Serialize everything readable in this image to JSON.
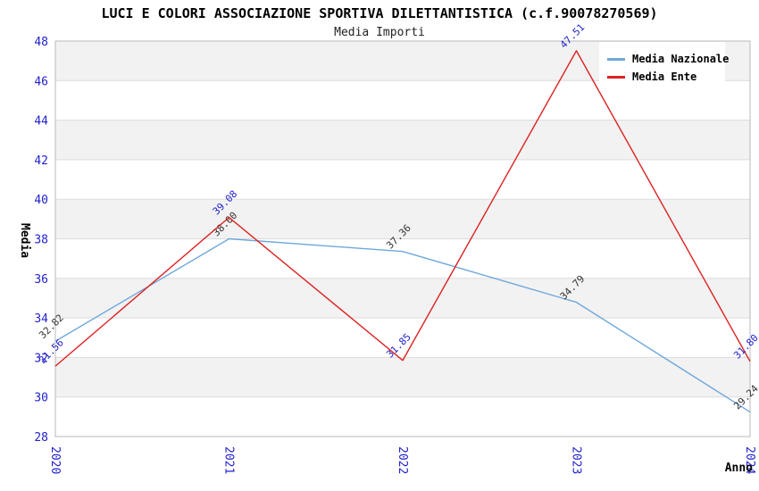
{
  "header": {
    "title": "LUCI E COLORI ASSOCIAZIONE SPORTIVA DILETTANTISTICA (c.f.90078270569)",
    "subtitle": "Media Importi"
  },
  "axes": {
    "x_title": "Anno",
    "y_title": "Media",
    "y_ticks": [
      28,
      30,
      32,
      34,
      36,
      38,
      40,
      42,
      44,
      46,
      48
    ],
    "x_ticks": [
      "2020",
      "2021",
      "2022",
      "2023",
      "2024"
    ],
    "tick_color": "#2222cc"
  },
  "legend": {
    "items": [
      {
        "label": "Media Nazionale",
        "color": "#6fa8dc"
      },
      {
        "label": "Media Ente",
        "color": "#dd2222"
      }
    ]
  },
  "style": {
    "band_color": "#f2f2f2",
    "band_alt_color": "#ffffff",
    "grid_color": "#dcdcdc",
    "border_color": "#b8b8b8",
    "title_color": "#000000"
  },
  "chart_data": {
    "type": "line",
    "title": "LUCI E COLORI ASSOCIAZIONE SPORTIVA DILETTANTISTICA (c.f.90078270569)",
    "subtitle": "Media Importi",
    "xlabel": "Anno",
    "ylabel": "Media",
    "x": [
      "2020",
      "2021",
      "2022",
      "2023",
      "2024"
    ],
    "ylim": [
      28,
      48
    ],
    "y_tick_step": 2,
    "grid": "horizontal-bands",
    "legend_position": "top-right",
    "series": [
      {
        "name": "Media Nazionale",
        "color": "#6fa8dc",
        "label_color": "#333333",
        "values": [
          32.82,
          38.0,
          37.36,
          34.79,
          29.24
        ],
        "point_labels": [
          "32.82",
          "38.00",
          "37.36",
          "34.79",
          "29.24"
        ]
      },
      {
        "name": "Media Ente",
        "color": "#dd2222",
        "label_color": "#2222cc",
        "values": [
          31.56,
          39.08,
          31.85,
          47.51,
          31.8
        ],
        "point_labels": [
          "31.56",
          "39.08",
          "31.85",
          "47.51",
          "31.80"
        ]
      }
    ]
  }
}
